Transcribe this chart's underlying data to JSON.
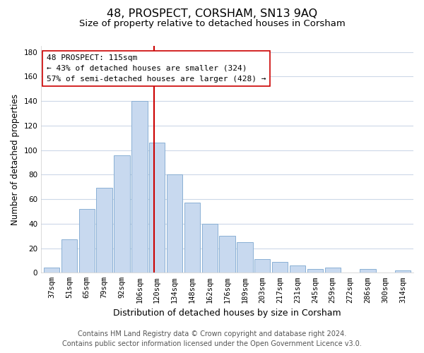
{
  "title": "48, PROSPECT, CORSHAM, SN13 9AQ",
  "subtitle": "Size of property relative to detached houses in Corsham",
  "xlabel": "Distribution of detached houses by size in Corsham",
  "ylabel": "Number of detached properties",
  "bar_labels": [
    "37sqm",
    "51sqm",
    "65sqm",
    "79sqm",
    "92sqm",
    "106sqm",
    "120sqm",
    "134sqm",
    "148sqm",
    "162sqm",
    "176sqm",
    "189sqm",
    "203sqm",
    "217sqm",
    "231sqm",
    "245sqm",
    "259sqm",
    "272sqm",
    "286sqm",
    "300sqm",
    "314sqm"
  ],
  "bar_values": [
    4,
    27,
    52,
    69,
    96,
    140,
    106,
    80,
    57,
    40,
    30,
    25,
    11,
    9,
    6,
    3,
    4,
    0,
    3,
    0,
    2
  ],
  "bar_color": "#c8d9ef",
  "bar_edge_color": "#8ab0d4",
  "vline_x": 6.0,
  "vline_color": "#cc0000",
  "ylim": [
    0,
    185
  ],
  "yticks": [
    0,
    20,
    40,
    60,
    80,
    100,
    120,
    140,
    160,
    180
  ],
  "annotation_line1": "48 PROSPECT: 115sqm",
  "annotation_line2": "← 43% of detached houses are smaller (324)",
  "annotation_line3": "57% of semi-detached houses are larger (428) →",
  "annotation_box_fc": "#ffffff",
  "annotation_box_ec": "#cc0000",
  "footnote1": "Contains HM Land Registry data © Crown copyright and database right 2024.",
  "footnote2": "Contains public sector information licensed under the Open Government Licence v3.0.",
  "bg_color": "#ffffff",
  "grid_color": "#ccd8e8",
  "title_fontsize": 11.5,
  "subtitle_fontsize": 9.5,
  "xlabel_fontsize": 9,
  "ylabel_fontsize": 8.5,
  "tick_fontsize": 7.5,
  "annot_fontsize": 8,
  "footnote_fontsize": 7
}
